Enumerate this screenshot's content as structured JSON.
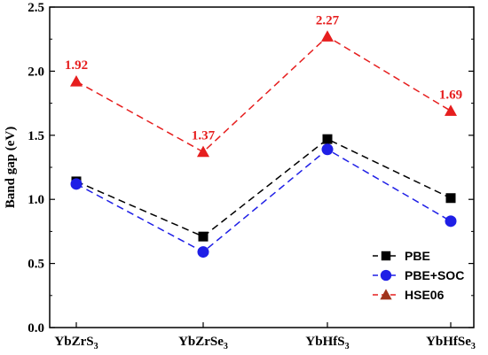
{
  "chart_data": {
    "type": "line",
    "categories": [
      {
        "base": "YbZrS",
        "sub": "3"
      },
      {
        "base": "YbZrSe",
        "sub": "3"
      },
      {
        "base": "YbHfS",
        "sub": "3"
      },
      {
        "base": "YbHfSe",
        "sub": "3"
      }
    ],
    "ylabel": "Band gap (eV)",
    "ylim": [
      0.0,
      2.5
    ],
    "yticks": [
      "0.0",
      "0.5",
      "1.0",
      "1.5",
      "2.0",
      "2.5"
    ],
    "legend_position": "bottom-right",
    "grid": false,
    "series": [
      {
        "name": "PBE",
        "values": [
          1.14,
          0.71,
          1.47,
          1.01
        ],
        "color": "#000000",
        "marker": "square"
      },
      {
        "name": "PBE+SOC",
        "values": [
          1.12,
          0.59,
          1.39,
          0.83
        ],
        "color": "#1f1fe6",
        "marker": "circle"
      },
      {
        "name": "HSE06",
        "values": [
          1.92,
          1.37,
          2.27,
          1.69
        ],
        "color": "#e61e1e",
        "marker": "triangle",
        "legend_marker_color": "#a0341c",
        "data_labels": [
          "1.92",
          "1.37",
          "2.27",
          "1.69"
        ]
      }
    ]
  }
}
